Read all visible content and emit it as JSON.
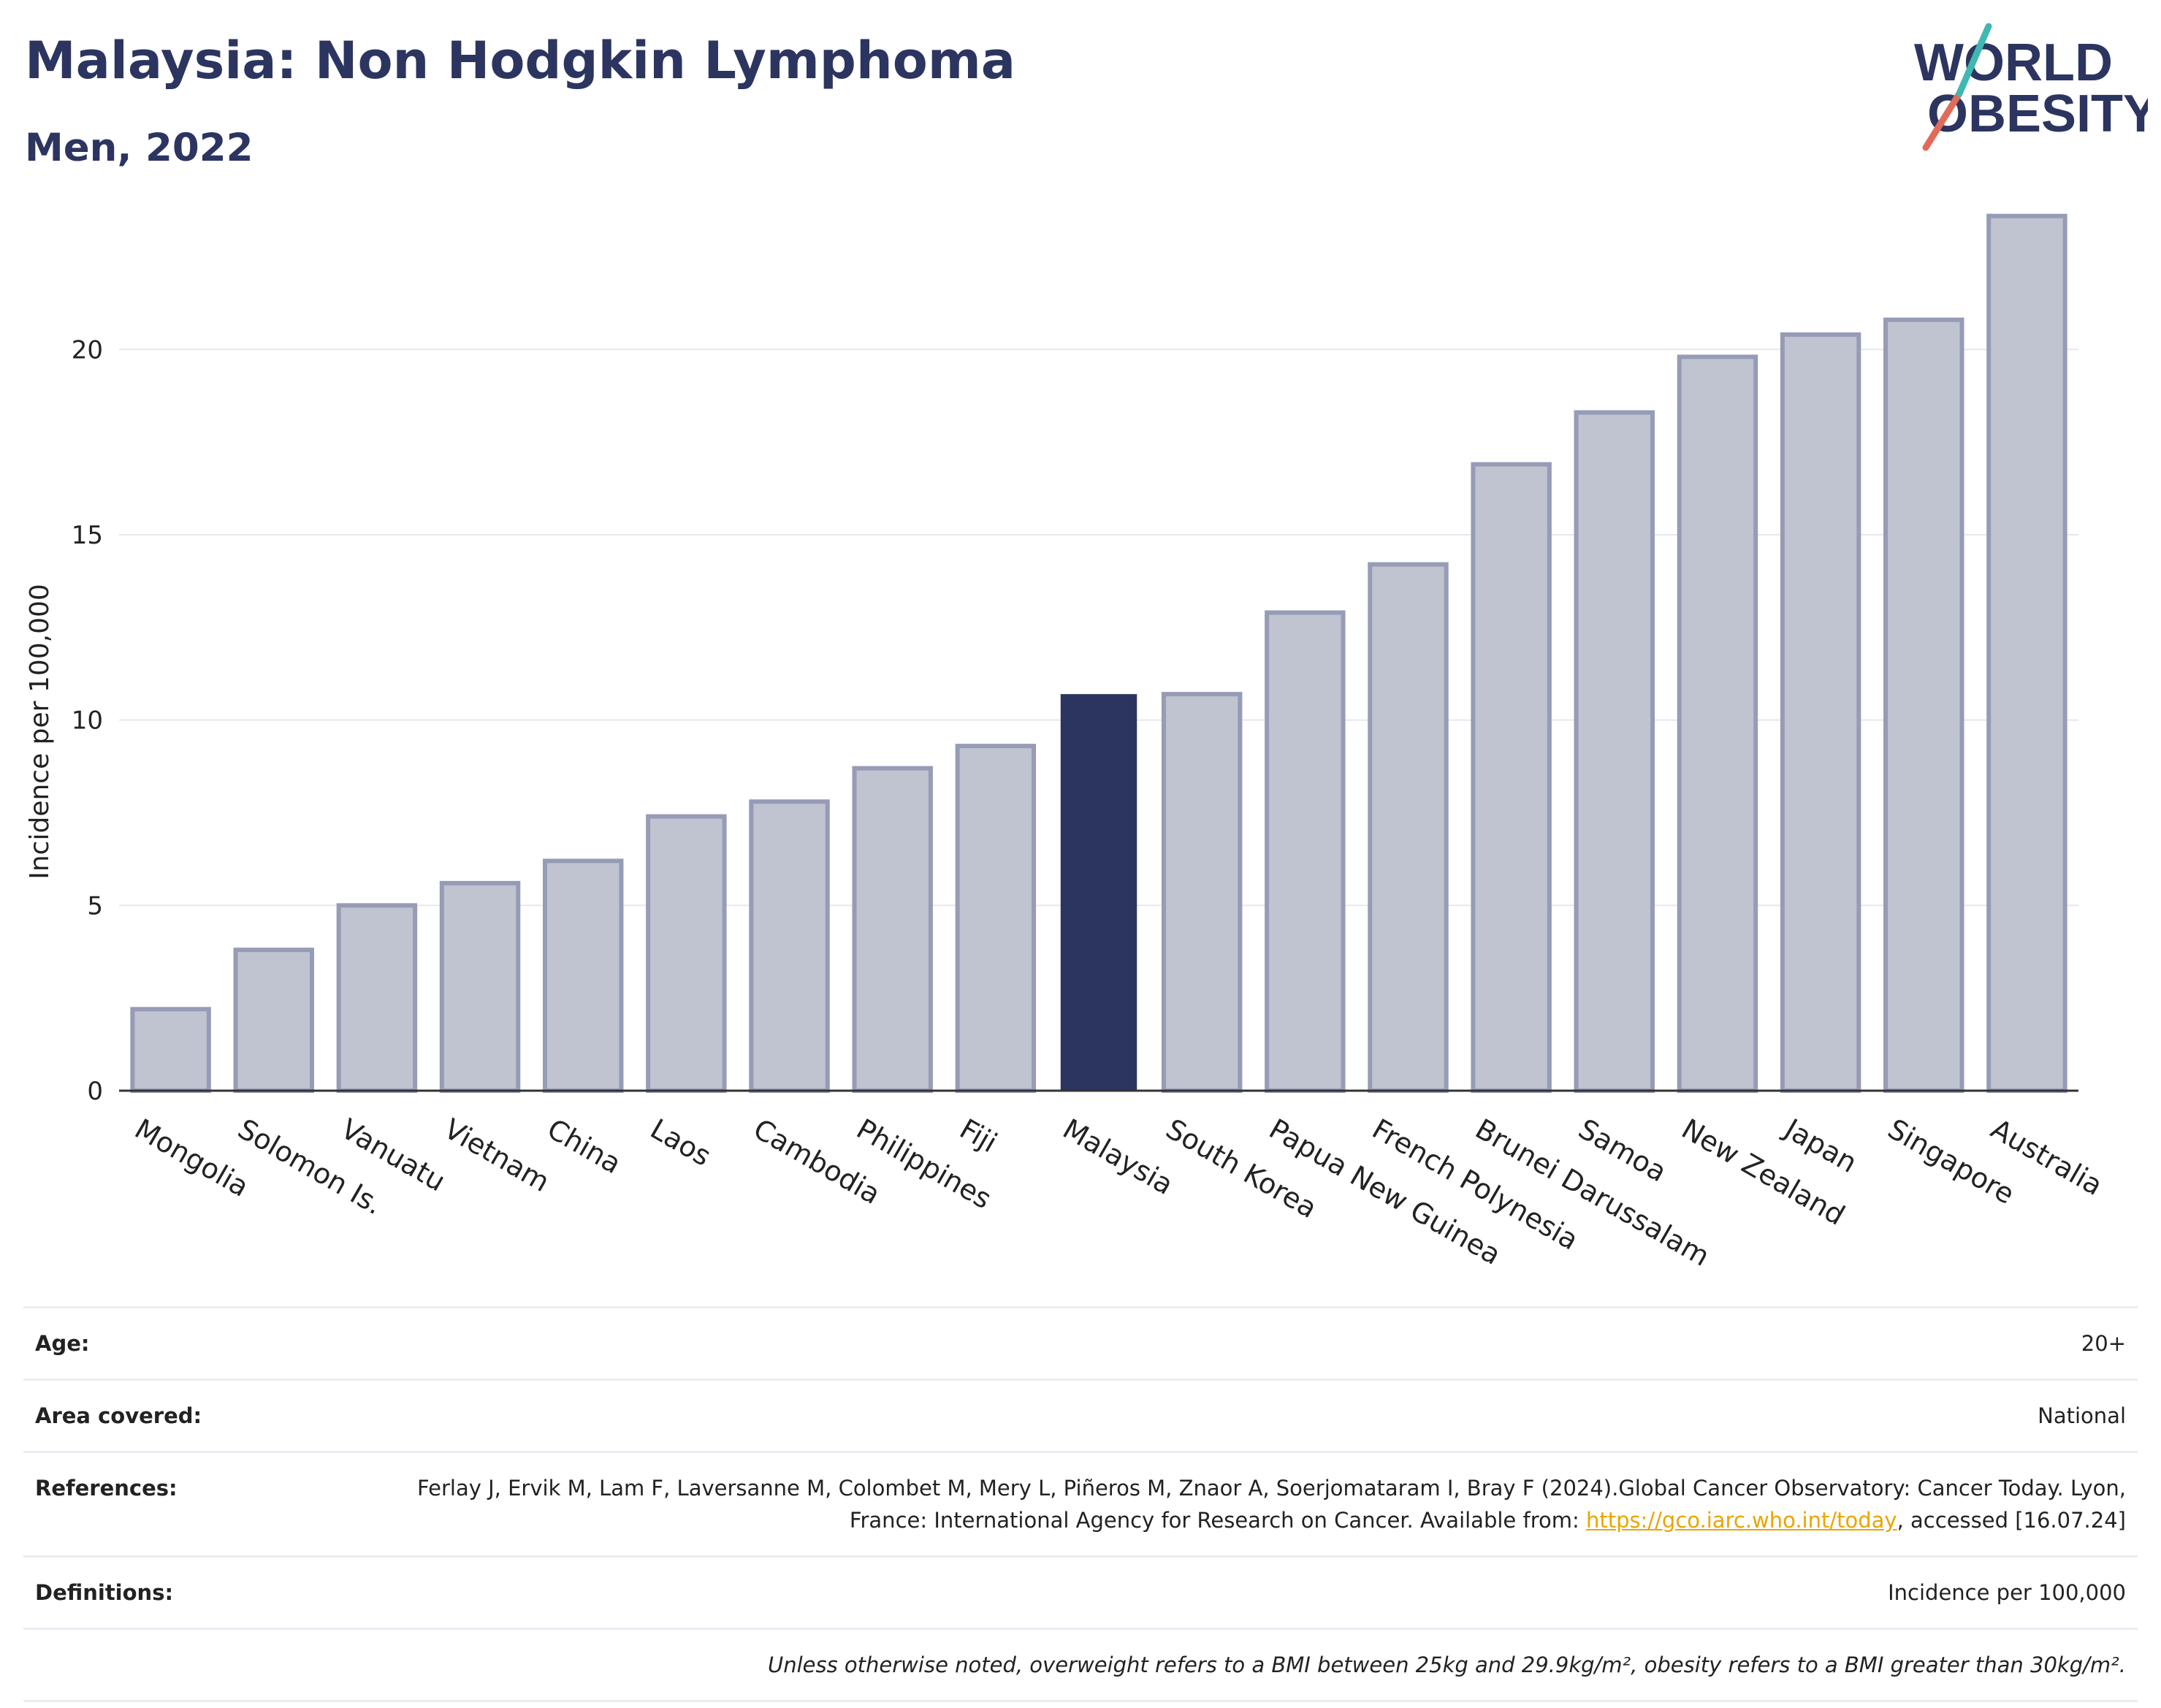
{
  "header": {
    "title": "Malaysia: Non Hodgkin Lymphoma",
    "subtitle": "Men, 2022"
  },
  "logo": {
    "line1": "WORLD",
    "line2": "OBESITY"
  },
  "chart_data": {
    "type": "bar",
    "ylabel": "Incidence per 100,000",
    "ylim": [
      0,
      24.5
    ],
    "yticks": [
      0,
      5,
      10,
      15,
      20
    ],
    "grid": true,
    "highlight": "Malaysia",
    "colors": {
      "bar": "#c0c3d0",
      "bar_edge": "#969bb6",
      "highlight": "#2c3560"
    },
    "categories": [
      "Mongolia",
      "Solomon Is.",
      "Vanuatu",
      "Vietnam",
      "China",
      "Laos",
      "Cambodia",
      "Philippines",
      "Fiji",
      "Malaysia",
      "South Korea",
      "Papua New Guinea",
      "French Polynesia",
      "Brunei Darussalam",
      "Samoa",
      "New Zealand",
      "Japan",
      "Singapore",
      "Australia"
    ],
    "values": [
      2.2,
      3.8,
      5.0,
      5.6,
      6.2,
      7.4,
      7.8,
      8.7,
      9.3,
      10.7,
      10.7,
      12.9,
      14.2,
      16.9,
      18.3,
      19.8,
      20.4,
      20.8,
      23.6
    ]
  },
  "info": {
    "age_label": "Age:",
    "age_value": "20+",
    "area_label": "Area covered:",
    "area_value": "National",
    "references_label": "References:",
    "references_text": "Ferlay J, Ervik M, Lam F, Laversanne M, Colombet M, Mery L, Piñeros M, Znaor A, Soerjomataram I, Bray F (2024).Global Cancer Observatory: Cancer Today. Lyon, France: International Agency for Research on Cancer. Available from: ",
    "references_link": "https://gco.iarc.who.int/today",
    "references_tail": ", accessed [16.07.24]",
    "definitions_label": "Definitions:",
    "definitions_value": "Incidence per 100,000",
    "note": "Unless otherwise noted, overweight refers to a BMI between 25kg and 29.9kg/m², obesity refers to a BMI greater than 30kg/m²."
  }
}
